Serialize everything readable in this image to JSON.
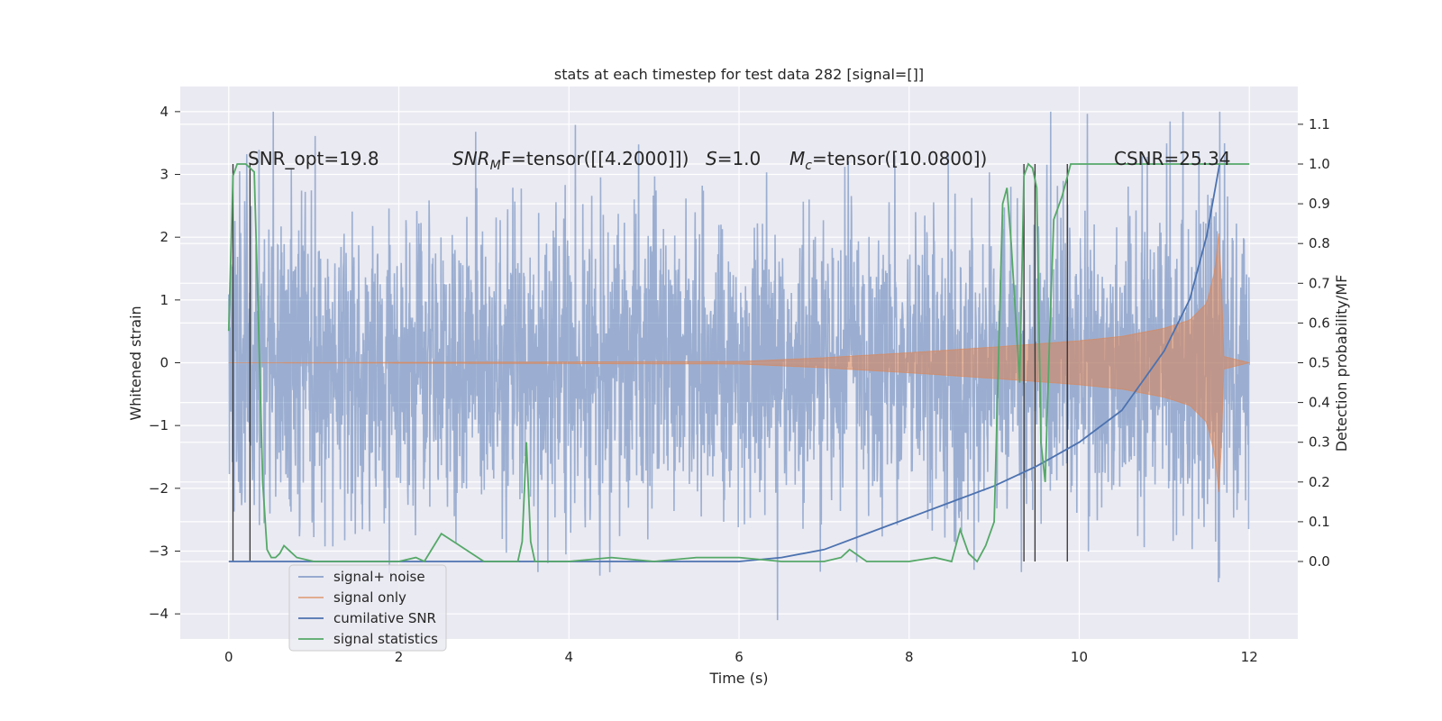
{
  "chart_data": {
    "type": "line",
    "title": "stats at each timestep for test data 282 [signal=[]]",
    "xlabel": "Time (s)",
    "ylabel_left": "Whitened strain",
    "ylabel_right": "Detection probability/MF",
    "xlim": [
      -0.57,
      12.57
    ],
    "ylim_left": [
      -4.4,
      4.4
    ],
    "ylim_right": [
      -0.195,
      1.195
    ],
    "xticks": [
      0,
      2,
      4,
      6,
      8,
      10,
      12
    ],
    "xtick_labels": [
      "0",
      "2",
      "4",
      "6",
      "8",
      "10",
      "12"
    ],
    "yticks_left": [
      4,
      3,
      2,
      1,
      0,
      -1,
      -2,
      -3,
      -4
    ],
    "ytick_labels_left": [
      "4",
      "3",
      "2",
      "1",
      "0",
      "−1",
      "−2",
      "−3",
      "−4"
    ],
    "yticks_right": [
      1.1,
      1.0,
      0.9,
      0.8,
      0.7,
      0.6,
      0.5,
      0.4,
      0.3,
      0.2,
      0.1,
      0.0
    ],
    "ytick_labels_right": [
      "1.1",
      "1.0",
      "0.9",
      "0.8",
      "0.7",
      "0.6",
      "0.5",
      "0.4",
      "0.3",
      "0.2",
      "0.1",
      "0.0"
    ],
    "grid": true,
    "legend_position": "lower-left",
    "annotations": {
      "snr_opt": "SNR_opt=19.8",
      "snr_mf": "SNR",
      "snr_mf_sub": "M",
      "snr_mf_rest": "F=tensor([[4.2000]])",
      "s_label": "S",
      "s_value": "=1.0",
      "mc_label": "M",
      "mc_sub": "c",
      "mc_value": "=tensor([10.0800])",
      "csnr": "CSNR=25.34"
    },
    "series": [
      {
        "name": "signal+ noise",
        "axis": "left",
        "color": "#4c72b0",
        "description": "whitened strain, gaussian noise band roughly -2.5 to 2.5 with spikes to about ±4",
        "t_range": [
          0,
          12
        ],
        "band_sigma": 1.2,
        "extremes": [
          4.0,
          -4.1
        ]
      },
      {
        "name": "signal only",
        "axis": "left",
        "color": "#dd8452",
        "description": "chirp signal: amplitude near 0 before t=6, growing to about 0.5 at t=11, peaking at about 2.2 near t=11.65 then dropping",
        "envelope_t": [
          0,
          6,
          7,
          8,
          9,
          10,
          10.5,
          11,
          11.3,
          11.5,
          11.6,
          11.65,
          11.7,
          12
        ],
        "envelope_amp": [
          0.0,
          0.02,
          0.08,
          0.16,
          0.25,
          0.35,
          0.42,
          0.55,
          0.68,
          0.95,
          1.5,
          2.2,
          0.1,
          0.0
        ]
      },
      {
        "name": "cumilative SNR",
        "axis": "right",
        "color": "#4c72b0",
        "x": [
          0,
          6,
          6.5,
          7,
          7.5,
          8,
          8.5,
          9,
          9.5,
          10,
          10.5,
          11,
          11.3,
          11.5,
          11.65
        ],
        "y": [
          0.0,
          0.0,
          0.01,
          0.03,
          0.07,
          0.11,
          0.15,
          0.19,
          0.24,
          0.3,
          0.38,
          0.53,
          0.66,
          0.82,
          1.0
        ]
      },
      {
        "name": "signal statistics",
        "axis": "right",
        "color": "#55a868",
        "x": [
          0,
          0.05,
          0.1,
          0.2,
          0.3,
          0.35,
          0.4,
          0.45,
          0.5,
          0.55,
          0.6,
          0.65,
          0.7,
          0.8,
          1.0,
          1.5,
          2.0,
          2.2,
          2.3,
          2.5,
          3.0,
          3.4,
          3.45,
          3.5,
          3.55,
          3.6,
          3.7,
          4.0,
          4.5,
          5.0,
          5.5,
          6.0,
          6.5,
          7.0,
          7.2,
          7.3,
          7.5,
          8.0,
          8.3,
          8.5,
          8.6,
          8.7,
          8.8,
          8.9,
          9.0,
          9.05,
          9.1,
          9.15,
          9.2,
          9.3,
          9.35,
          9.4,
          9.45,
          9.5,
          9.55,
          9.6,
          9.65,
          9.7,
          9.8,
          9.9,
          10.0,
          12.0
        ],
        "y": [
          0.58,
          0.97,
          1.0,
          1.0,
          0.98,
          0.6,
          0.2,
          0.03,
          0.01,
          0.01,
          0.02,
          0.04,
          0.03,
          0.01,
          0.0,
          0.0,
          0.0,
          0.01,
          0.0,
          0.07,
          0.0,
          0.0,
          0.05,
          0.3,
          0.05,
          0.0,
          0.0,
          0.0,
          0.01,
          0.0,
          0.01,
          0.01,
          0.0,
          0.0,
          0.01,
          0.03,
          0.0,
          0.0,
          0.01,
          0.0,
          0.08,
          0.02,
          0.0,
          0.04,
          0.1,
          0.5,
          0.9,
          0.94,
          0.8,
          0.45,
          0.97,
          1.0,
          0.99,
          0.94,
          0.3,
          0.2,
          0.55,
          0.86,
          0.92,
          1.0,
          1.0,
          1.0
        ]
      }
    ],
    "vertical_markers": [
      0.05,
      0.25,
      9.35,
      9.48,
      9.86
    ],
    "vertical_marker_color": "#333333",
    "vertical_marker_ylim_right": [
      0.0,
      1.0
    ]
  }
}
